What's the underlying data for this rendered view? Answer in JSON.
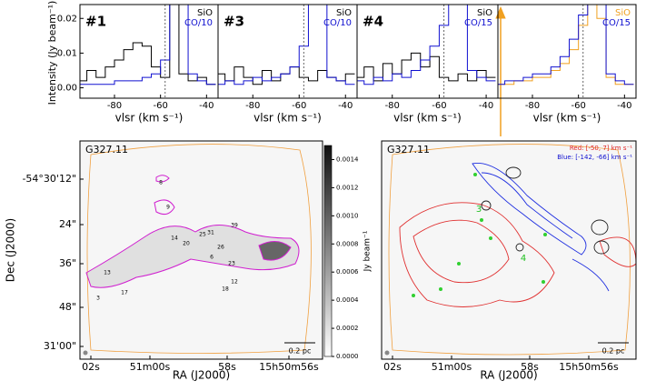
{
  "chart_data": [
    {
      "type": "line",
      "label": "#1",
      "ylabel": "Intensity (Jy beam⁻¹)",
      "xlabel": "vlsr (km s⁻¹)",
      "x": [
        -94,
        -90,
        -86,
        -82,
        -78,
        -74,
        -70,
        -66,
        -62,
        -58,
        -54,
        -50,
        -46,
        -42,
        -38
      ],
      "xlim": [
        -95,
        -35
      ],
      "ylim": [
        -0.003,
        0.024
      ],
      "xticks": [
        -80,
        -60,
        -40
      ],
      "yticks": [
        {
          "value": 0,
          "label": "0.00"
        },
        {
          "value": 0.01,
          "label": "0.01"
        },
        {
          "value": 0.02,
          "label": "0.02"
        }
      ],
      "vsys": -58,
      "series": [
        {
          "name": "SiO",
          "color": "#000000",
          "values": [
            0.002,
            0.005,
            0.003,
            0.006,
            0.008,
            0.011,
            0.013,
            0.012,
            0.006,
            0.003,
            0.024,
            0.004,
            0.002,
            0.003,
            0.001
          ]
        },
        {
          "name": "CO/10",
          "color": "#1010d0",
          "values": [
            0.001,
            0.001,
            0.001,
            0.001,
            0.002,
            0.002,
            0.002,
            0.003,
            0.004,
            0.008,
            0.024,
            0.024,
            0.004,
            0.002,
            0.001
          ]
        }
      ]
    },
    {
      "type": "line",
      "label": "#3",
      "xlabel": "vlsr (km s⁻¹)",
      "x": [
        -94,
        -90,
        -86,
        -82,
        -78,
        -74,
        -70,
        -66,
        -62,
        -58,
        -54,
        -50,
        -46,
        -42,
        -38
      ],
      "xlim": [
        -95,
        -35
      ],
      "ylim": [
        -0.003,
        0.024
      ],
      "xticks": [
        -80,
        -60,
        -40
      ],
      "vsys": -58,
      "series": [
        {
          "name": "SiO",
          "color": "#000000",
          "values": [
            0.004,
            0.002,
            0.006,
            0.003,
            0.001,
            0.005,
            0.002,
            0.004,
            0.006,
            0.003,
            0.002,
            0.005,
            0.003,
            0.002,
            0.004
          ]
        },
        {
          "name": "CO/10",
          "color": "#1010d0",
          "values": [
            0.001,
            0.002,
            0.001,
            0.002,
            0.003,
            0.002,
            0.003,
            0.004,
            0.006,
            0.012,
            0.024,
            0.024,
            0.003,
            0.002,
            0.001
          ]
        }
      ]
    },
    {
      "type": "line",
      "label": "#4",
      "xlabel": "vlsr (km s⁻¹)",
      "x": [
        -94,
        -90,
        -86,
        -82,
        -78,
        -74,
        -70,
        -66,
        -62,
        -58,
        -54,
        -50,
        -46,
        -42,
        -38
      ],
      "xlim": [
        -95,
        -35
      ],
      "ylim": [
        -0.003,
        0.024
      ],
      "xticks": [
        -80,
        -60,
        -40
      ],
      "vsys": -58,
      "series": [
        {
          "name": "SiO",
          "color": "#000000",
          "values": [
            0.003,
            0.006,
            0.002,
            0.007,
            0.004,
            0.008,
            0.01,
            0.006,
            0.009,
            0.003,
            0.002,
            0.004,
            0.002,
            0.005,
            0.003
          ]
        },
        {
          "name": "CO/15",
          "color": "#1010d0",
          "values": [
            0.002,
            0.001,
            0.003,
            0.002,
            0.004,
            0.003,
            0.005,
            0.008,
            0.012,
            0.018,
            0.024,
            0.024,
            0.005,
            0.003,
            0.002
          ]
        }
      ]
    },
    {
      "type": "line",
      "xlabel": "vlsr (km s⁻¹)",
      "x": [
        -94,
        -90,
        -86,
        -82,
        -78,
        -74,
        -70,
        -66,
        -62,
        -58,
        -54,
        -50,
        -46,
        -42,
        -38
      ],
      "xlim": [
        -95,
        -35
      ],
      "ylim": [
        -0.003,
        0.024
      ],
      "xticks": [
        -80,
        -60,
        -40
      ],
      "vsys": -58,
      "series": [
        {
          "name": "SiO",
          "color": "#f0a020",
          "values": [
            0.001,
            0.001,
            0.002,
            0.002,
            0.003,
            0.003,
            0.005,
            0.007,
            0.011,
            0.018,
            0.024,
            0.02,
            0.003,
            0.001,
            0.001
          ]
        },
        {
          "name": "CO/15",
          "color": "#1010d0",
          "values": [
            0.001,
            0.002,
            0.002,
            0.003,
            0.004,
            0.004,
            0.006,
            0.009,
            0.014,
            0.021,
            0.024,
            0.024,
            0.004,
            0.002,
            0.001
          ]
        }
      ]
    }
  ],
  "maps": [
    {
      "title": "G327.11",
      "xlabel": "RA (J2000)",
      "ylabel": "Dec (J2000)",
      "xticks": [
        "02s",
        "51m00s",
        "58s",
        "15h50m56s"
      ],
      "yticks": [
        "-54°30'12\"",
        "24\"",
        "36\"",
        "48\"",
        "31'00\""
      ],
      "scalebar": "0.2 pc",
      "sources": [
        "8",
        "9",
        "14",
        "25",
        "31",
        "39",
        "20",
        "26",
        "6",
        "23",
        "18",
        "12",
        "13",
        "17",
        "3"
      ],
      "colorbar": {
        "label": "Jy beam⁻¹",
        "clim": [
          0,
          0.0015
        ],
        "ticks": [
          {
            "value": 0,
            "label": "0.0000"
          },
          {
            "value": 0.0002,
            "label": "0.0002"
          },
          {
            "value": 0.0004,
            "label": "0.0004"
          },
          {
            "value": 0.0006,
            "label": "0.0006"
          },
          {
            "value": 0.0008,
            "label": "0.0008"
          },
          {
            "value": 0.001,
            "label": "0.0010"
          },
          {
            "value": 0.0012,
            "label": "0.0012"
          },
          {
            "value": 0.0014,
            "label": "0.0014"
          }
        ]
      }
    },
    {
      "title": "G327.11",
      "xlabel": "RA (J2000)",
      "xticks": [
        "02s",
        "51m00s",
        "58s",
        "15h50m56s"
      ],
      "scalebar": "0.2 pc",
      "sources": [
        "3",
        "4"
      ],
      "legend": [
        "Red: [-50, 7] km s⁻¹",
        "Blue: [-142, -66] km s⁻¹"
      ]
    }
  ]
}
